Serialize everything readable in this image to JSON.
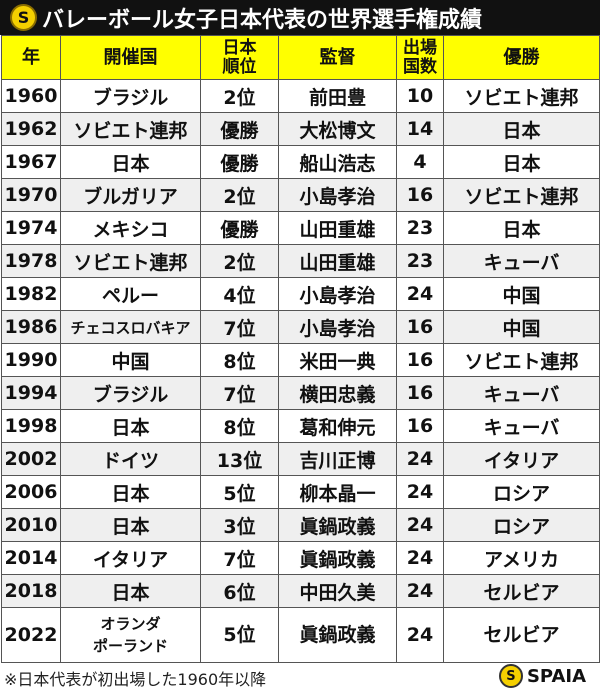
{
  "title": "バレーボール女子日本代表の世界選手権成績",
  "headers": [
    "年",
    "開催国",
    "日本\n順位",
    "監督",
    "出場\n国数",
    "優勝"
  ],
  "rows": [
    [
      "1960",
      "ブラジル",
      "2位",
      "前田豊",
      "10",
      "ソビエト連邦"
    ],
    [
      "1962",
      "ソビエト連邦",
      "優勝",
      "大松博文",
      "14",
      "日本"
    ],
    [
      "1967",
      "日本",
      "優勝",
      "船山浩志",
      "4",
      "日本"
    ],
    [
      "1970",
      "ブルガリア",
      "2位",
      "小島孝治",
      "16",
      "ソビエト連邦"
    ],
    [
      "1974",
      "メキシコ",
      "優勝",
      "山田重雄",
      "23",
      "日本"
    ],
    [
      "1978",
      "ソビエト連邦",
      "2位",
      "山田重雄",
      "23",
      "キューバ"
    ],
    [
      "1982",
      "ペルー",
      "4位",
      "小島孝治",
      "24",
      "中国"
    ],
    [
      "1986",
      "チェコスロバキア",
      "7位",
      "小島孝治",
      "16",
      "中国"
    ],
    [
      "1990",
      "中国",
      "8位",
      "米田一典",
      "16",
      "ソビエト連邦"
    ],
    [
      "1994",
      "ブラジル",
      "7位",
      "横田忠義",
      "16",
      "キューバ"
    ],
    [
      "1998",
      "日本",
      "8位",
      "葛和伸元",
      "16",
      "キューバ"
    ],
    [
      "2002",
      "ドイツ",
      "13位",
      "吉川正博",
      "24",
      "イタリア"
    ],
    [
      "2006",
      "日本",
      "5位",
      "柳本晶一",
      "24",
      "ロシア"
    ],
    [
      "2010",
      "日本",
      "3位",
      "眞鍋政義",
      "24",
      "ロシア"
    ],
    [
      "2014",
      "イタリア",
      "7位",
      "眞鍋政義",
      "24",
      "アメリカ"
    ],
    [
      "2018",
      "日本",
      "6位",
      "中田久美",
      "24",
      "セルビア"
    ],
    [
      "2022",
      "オランダ\nポーランド",
      "5位",
      "眞鍋政義",
      "24",
      "セルビア"
    ]
  ],
  "footnote": "※日本代表が初出場した1960年以降",
  "brand": "SPAIA",
  "colors": {
    "title_bg": "#111111",
    "header_bg": "#ffff00",
    "alt_row": "#efefef"
  }
}
